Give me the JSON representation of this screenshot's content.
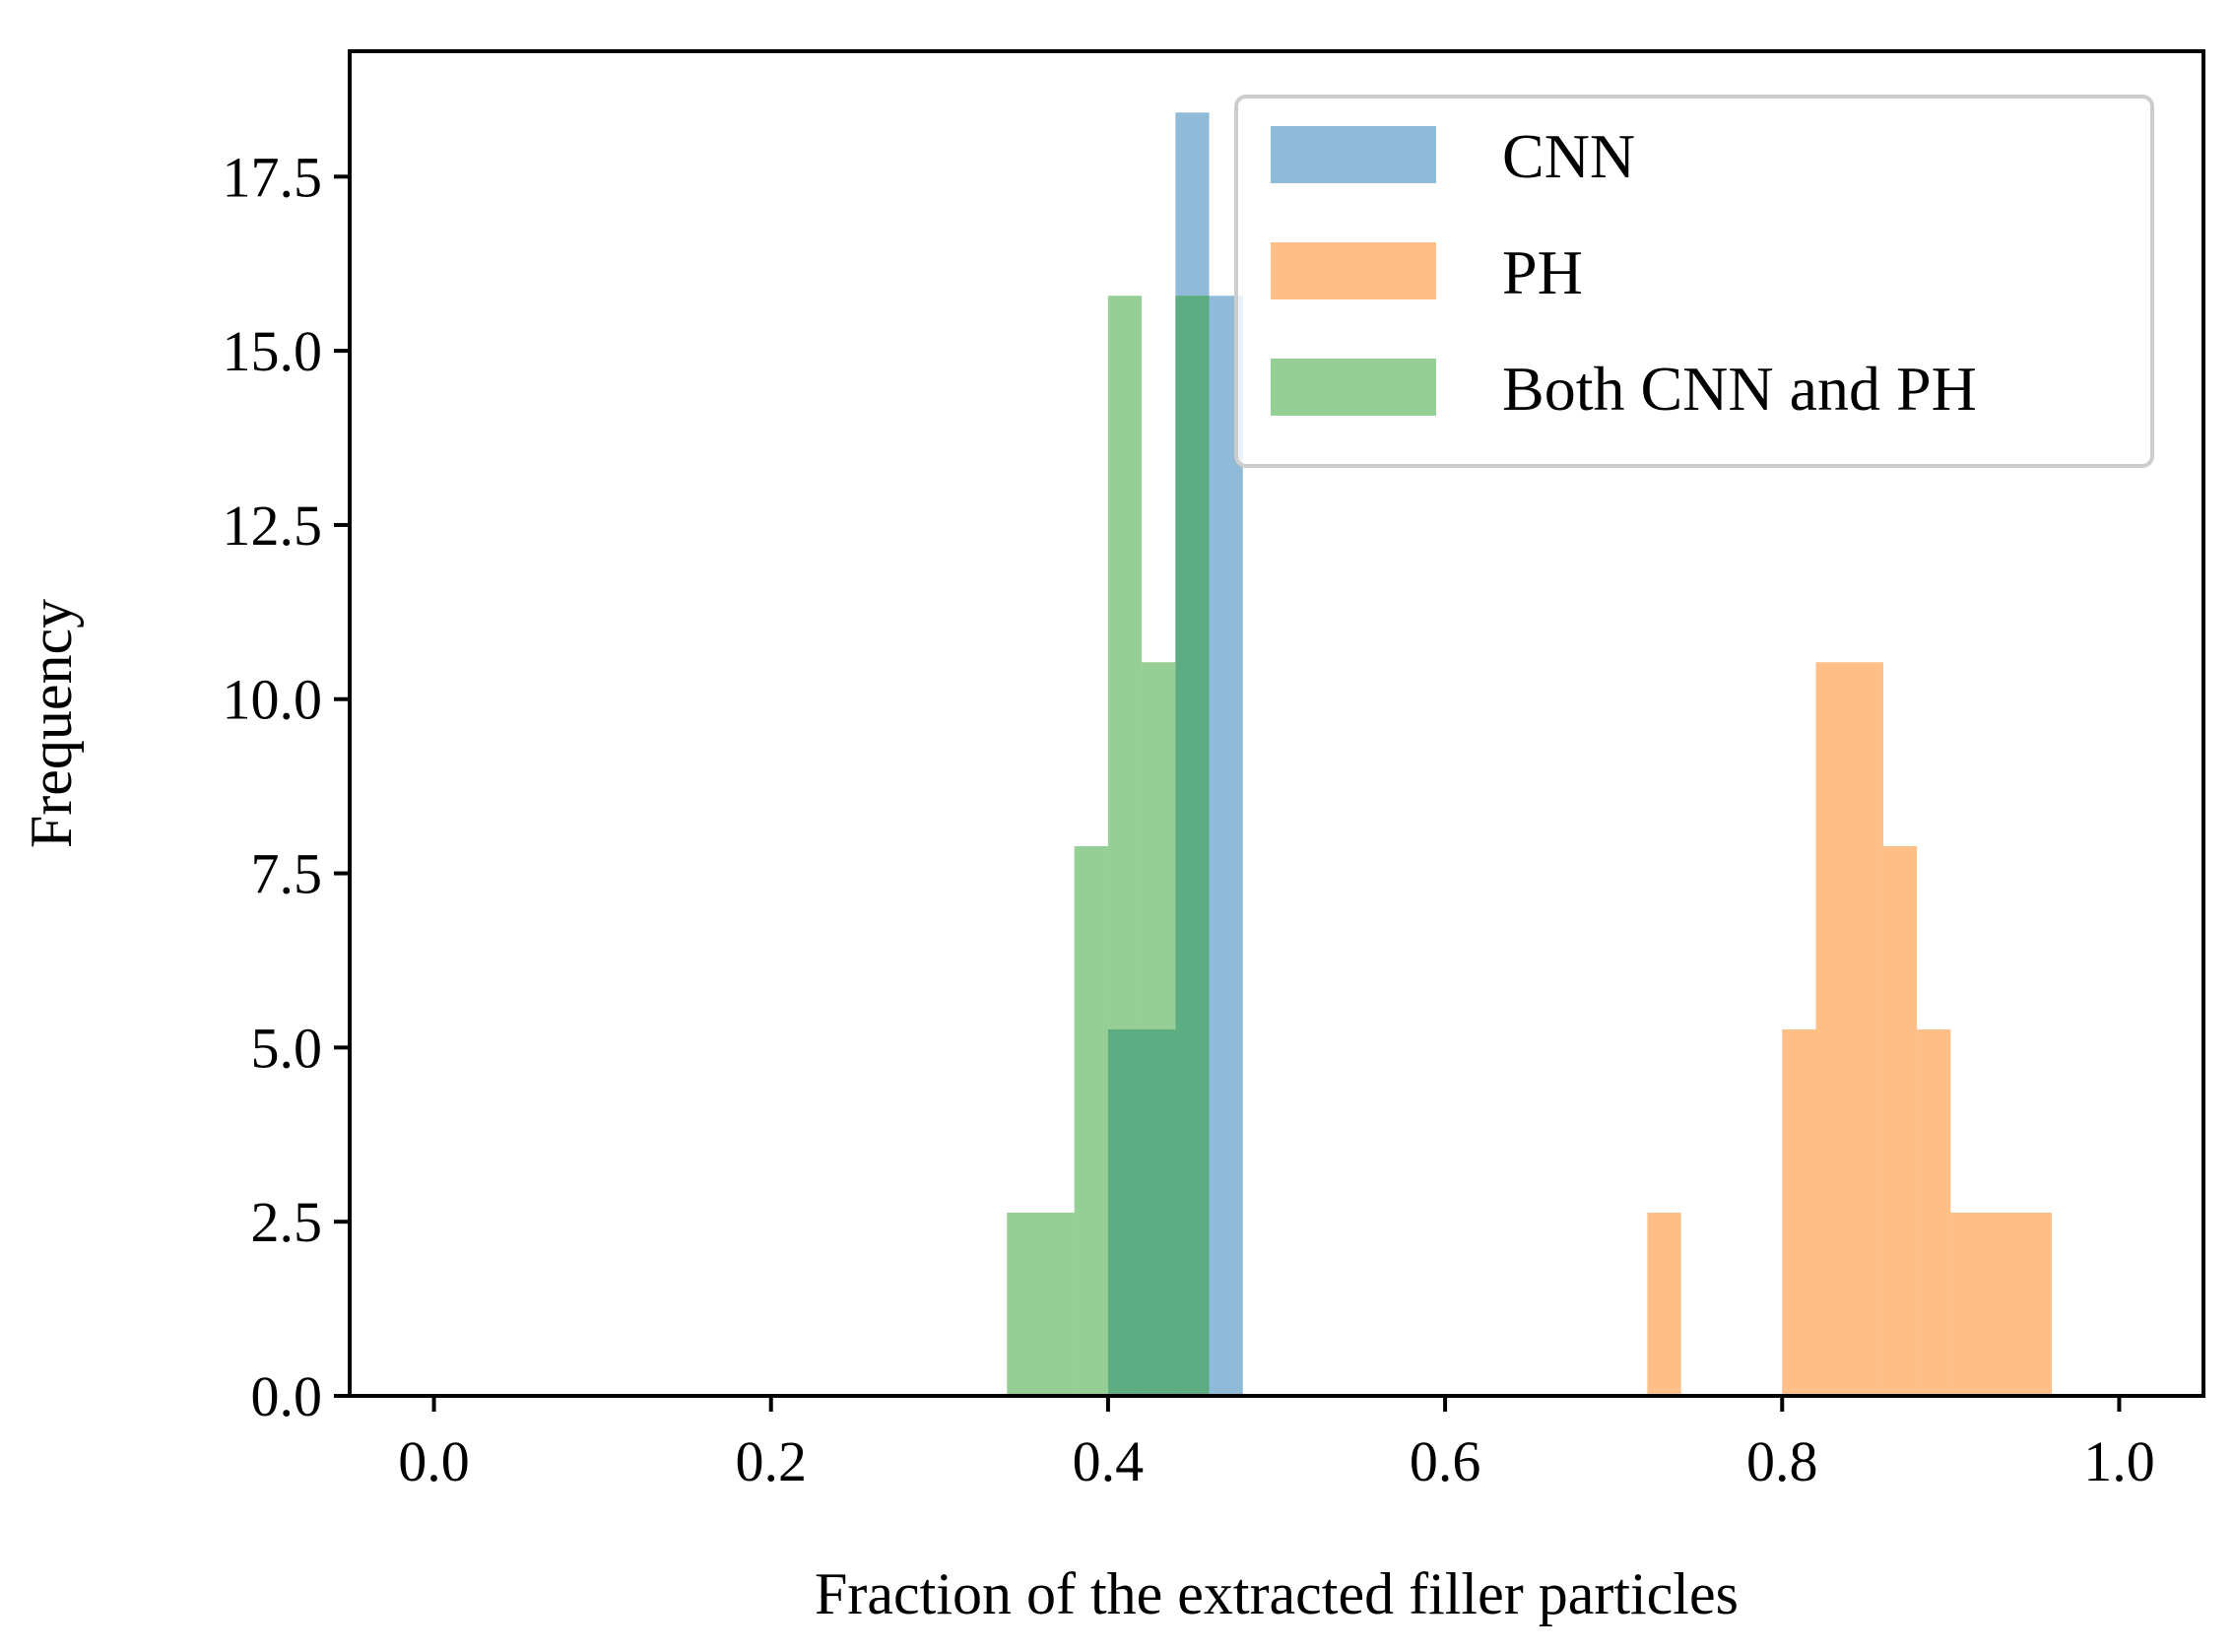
{
  "chart_data": {
    "type": "histogram",
    "xlabel": "Fraction of the extracted filler particles",
    "ylabel": "Frequency",
    "xlim": [
      -0.05,
      1.05
    ],
    "ylim": [
      0,
      19.3
    ],
    "xticks": [
      0.0,
      0.2,
      0.4,
      0.6,
      0.8,
      1.0
    ],
    "xtick_labels": [
      "0.0",
      "0.2",
      "0.4",
      "0.6",
      "0.8",
      "1.0"
    ],
    "yticks": [
      0.0,
      2.5,
      5.0,
      7.5,
      10.0,
      12.5,
      15.0,
      17.5
    ],
    "ytick_labels": [
      "0.0",
      "2.5",
      "5.0",
      "7.5",
      "10.0",
      "12.5",
      "15.0",
      "17.5"
    ],
    "grid": false,
    "legend_position": "top-right",
    "series": [
      {
        "name": "CNN",
        "color": "#1f77b4",
        "opacity": 0.5,
        "bins": [
          {
            "x0": 0.4,
            "x1": 0.44,
            "value": 5.26
          },
          {
            "x0": 0.44,
            "x1": 0.46,
            "value": 18.42
          },
          {
            "x0": 0.46,
            "x1": 0.48,
            "value": 15.79
          }
        ]
      },
      {
        "name": "PH",
        "color": "#ff7f0e",
        "opacity": 0.5,
        "bins": [
          {
            "x0": 0.72,
            "x1": 0.74,
            "value": 2.63
          },
          {
            "x0": 0.8,
            "x1": 0.82,
            "value": 5.26
          },
          {
            "x0": 0.82,
            "x1": 0.86,
            "value": 10.53
          },
          {
            "x0": 0.86,
            "x1": 0.88,
            "value": 7.89
          },
          {
            "x0": 0.88,
            "x1": 0.9,
            "value": 5.26
          },
          {
            "x0": 0.9,
            "x1": 0.96,
            "value": 2.63
          }
        ]
      },
      {
        "name": "Both CNN and PH",
        "color": "#2ca02c",
        "opacity": 0.5,
        "bins": [
          {
            "x0": 0.34,
            "x1": 0.38,
            "value": 2.63
          },
          {
            "x0": 0.38,
            "x1": 0.4,
            "value": 7.89
          },
          {
            "x0": 0.4,
            "x1": 0.42,
            "value": 15.79
          },
          {
            "x0": 0.42,
            "x1": 0.44,
            "value": 10.53
          },
          {
            "x0": 0.44,
            "x1": 0.46,
            "value": 15.79
          }
        ]
      }
    ]
  }
}
